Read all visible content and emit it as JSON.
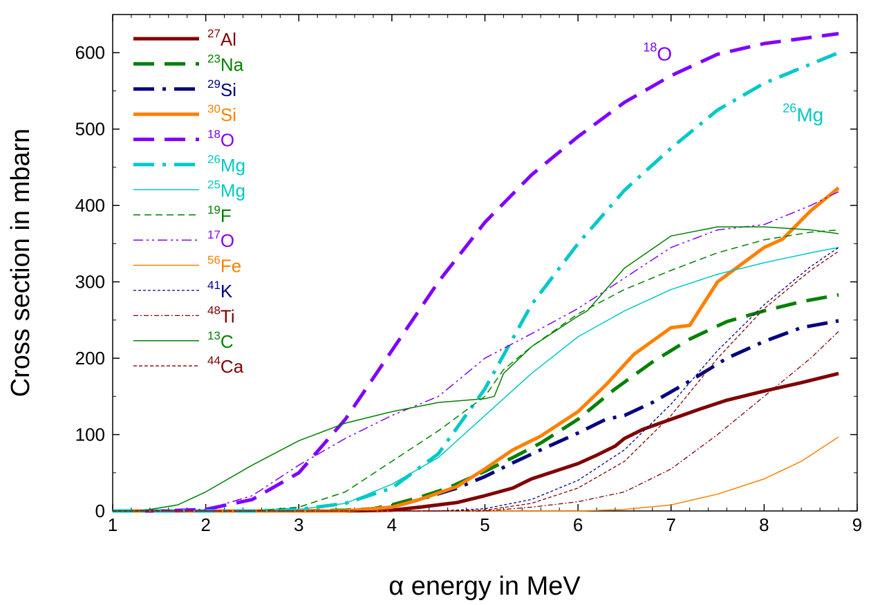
{
  "chart_data": {
    "type": "line",
    "xlabel": "α energy in MeV",
    "ylabel": "Cross section in mbarn",
    "xlim": [
      1,
      9
    ],
    "ylim": [
      0,
      650
    ],
    "xticks": [
      "1",
      "2",
      "3",
      "4",
      "5",
      "6",
      "7",
      "8",
      "9"
    ],
    "yticks": [
      "0",
      "100",
      "200",
      "300",
      "400",
      "500",
      "600"
    ],
    "grid": false,
    "legend_position": "top-left",
    "series": [
      {
        "name": "Al",
        "mass": "27",
        "color": "#800000",
        "style": "solid-thick",
        "x": [
          1,
          3,
          3.5,
          4,
          4.3,
          4.7,
          5,
          5.3,
          5.5,
          5.8,
          6,
          6.2,
          6.4,
          6.5,
          6.7,
          7,
          7.3,
          7.6,
          8,
          8.4,
          8.8
        ],
        "y": [
          0,
          0,
          0,
          1,
          5,
          11,
          20,
          30,
          42,
          54,
          62,
          73,
          85,
          95,
          107,
          120,
          133,
          145,
          157,
          168,
          180
        ]
      },
      {
        "name": "Na",
        "mass": "23",
        "color": "#008000",
        "style": "dash-thick",
        "x": [
          1,
          3,
          3.5,
          3.8,
          4,
          4.3,
          4.6,
          5,
          5.3,
          5.6,
          6,
          6.4,
          6.8,
          7.2,
          7.6,
          8,
          8.4,
          8.8
        ],
        "y": [
          0,
          0,
          1,
          3,
          8,
          18,
          30,
          52,
          70,
          89,
          120,
          160,
          195,
          225,
          248,
          262,
          274,
          283
        ]
      },
      {
        "name": "Si",
        "mass": "29",
        "color": "#000080",
        "style": "dashdot-thick",
        "x": [
          1,
          3.5,
          4,
          4.3,
          4.7,
          5,
          5.3,
          5.6,
          6,
          6.3,
          6.5,
          6.8,
          7.2,
          7.6,
          8,
          8.4,
          8.8
        ],
        "y": [
          0,
          0,
          5,
          15,
          30,
          45,
          63,
          80,
          102,
          120,
          125,
          142,
          170,
          200,
          222,
          240,
          249
        ]
      },
      {
        "name": "Si",
        "mass": "30",
        "color": "#ff8000",
        "style": "solid-thick",
        "x": [
          1,
          3.5,
          4,
          4.3,
          4.7,
          5,
          5.3,
          5.6,
          6,
          6.3,
          6.6,
          7,
          7.2,
          7.5,
          8,
          8.2,
          8.5,
          8.8
        ],
        "y": [
          0,
          0,
          5,
          15,
          32,
          55,
          80,
          98,
          130,
          165,
          205,
          240,
          243,
          300,
          345,
          356,
          393,
          423
        ]
      },
      {
        "name": "O",
        "mass": "18",
        "color": "#7f00ff",
        "style": "dash-thick",
        "x": [
          1,
          1.5,
          2,
          2.5,
          3,
          3.5,
          4,
          4.5,
          5,
          5.5,
          6,
          6.5,
          7,
          7.5,
          8,
          8.5,
          8.8
        ],
        "y": [
          0,
          0,
          2,
          15,
          50,
          120,
          210,
          300,
          378,
          440,
          490,
          535,
          570,
          598,
          612,
          620,
          625
        ]
      },
      {
        "name": "Mg",
        "mass": "26",
        "color": "#00c8c8",
        "style": "dashdot-thick",
        "x": [
          1,
          2.5,
          3,
          3.5,
          4,
          4.5,
          5,
          5.5,
          6,
          6.5,
          7,
          7.5,
          8,
          8.5,
          8.8
        ],
        "y": [
          0,
          0,
          2,
          10,
          30,
          75,
          160,
          270,
          350,
          420,
          475,
          525,
          560,
          585,
          600
        ]
      },
      {
        "name": "Mg",
        "mass": "25",
        "color": "#00c8c8",
        "style": "solid-thin",
        "x": [
          1,
          2.5,
          3,
          3.5,
          4,
          4.5,
          5,
          5.5,
          6,
          6.5,
          7,
          7.5,
          8,
          8.5,
          8.8
        ],
        "y": [
          0,
          0,
          2,
          10,
          35,
          70,
          125,
          180,
          228,
          262,
          290,
          310,
          325,
          338,
          345
        ]
      },
      {
        "name": "F",
        "mass": "19",
        "color": "#008000",
        "style": "dash-thin",
        "x": [
          1,
          2.5,
          3,
          3.5,
          4,
          4.5,
          5,
          5.2,
          5.5,
          6,
          6.5,
          7,
          7.5,
          8,
          8.5,
          8.8
        ],
        "y": [
          0,
          0,
          5,
          25,
          65,
          105,
          150,
          185,
          215,
          258,
          290,
          315,
          338,
          355,
          365,
          368
        ]
      },
      {
        "name": "O",
        "mass": "17",
        "color": "#7f00ff",
        "style": "dashdotdot-thin",
        "x": [
          1,
          2,
          2.5,
          3,
          3.5,
          4,
          4.5,
          5,
          5.5,
          6,
          6.5,
          7,
          7.5,
          8,
          8.5,
          8.8
        ],
        "y": [
          0,
          2,
          20,
          60,
          95,
          125,
          150,
          200,
          232,
          265,
          305,
          345,
          368,
          375,
          400,
          418
        ]
      },
      {
        "name": "Fe",
        "mass": "56",
        "color": "#ff8000",
        "style": "solid-thin",
        "x": [
          1,
          6,
          6.5,
          7,
          7.5,
          8,
          8.4,
          8.8
        ],
        "y": [
          0,
          0,
          2,
          8,
          22,
          42,
          65,
          97
        ]
      },
      {
        "name": "K",
        "mass": "41",
        "color": "#000080",
        "style": "dot-thin",
        "x": [
          1,
          4.5,
          5,
          5.5,
          6,
          6.5,
          7,
          7.5,
          8,
          8.5,
          8.8
        ],
        "y": [
          0,
          0,
          3,
          15,
          40,
          80,
          140,
          210,
          270,
          320,
          345
        ]
      },
      {
        "name": "Ti",
        "mass": "48",
        "color": "#800000",
        "style": "dashdot-small",
        "x": [
          1,
          5,
          5.5,
          6,
          6.5,
          7,
          7.5,
          8,
          8.5,
          8.8
        ],
        "y": [
          0,
          0,
          5,
          12,
          25,
          55,
          100,
          150,
          200,
          235
        ]
      },
      {
        "name": "C",
        "mass": "13",
        "color": "#008000",
        "style": "solid-thin",
        "x": [
          1,
          1.3,
          1.7,
          2,
          2.5,
          3,
          3.5,
          4,
          4.5,
          5,
          5.1,
          5.2,
          5.5,
          6,
          6.1,
          6.3,
          6.5,
          7,
          7.5,
          8,
          8.5,
          8.8
        ],
        "y": [
          0,
          0,
          8,
          25,
          60,
          92,
          115,
          130,
          142,
          147,
          150,
          180,
          215,
          255,
          262,
          290,
          318,
          360,
          372,
          372,
          368,
          363
        ]
      },
      {
        "name": "Ca",
        "mass": "44",
        "color": "#800000",
        "style": "dash-small",
        "x": [
          1,
          4.5,
          5,
          5.5,
          6,
          6.5,
          7,
          7.5,
          8,
          8.5,
          8.8
        ],
        "y": [
          0,
          0,
          1,
          10,
          30,
          65,
          125,
          200,
          265,
          315,
          340
        ]
      }
    ],
    "annotations": [
      {
        "text": "O",
        "mass": "18",
        "color": "#7f00ff",
        "x": 6.7,
        "y": 590
      },
      {
        "text": "Mg",
        "mass": "26",
        "color": "#00c8c8",
        "x": 8.2,
        "y": 510
      }
    ]
  }
}
